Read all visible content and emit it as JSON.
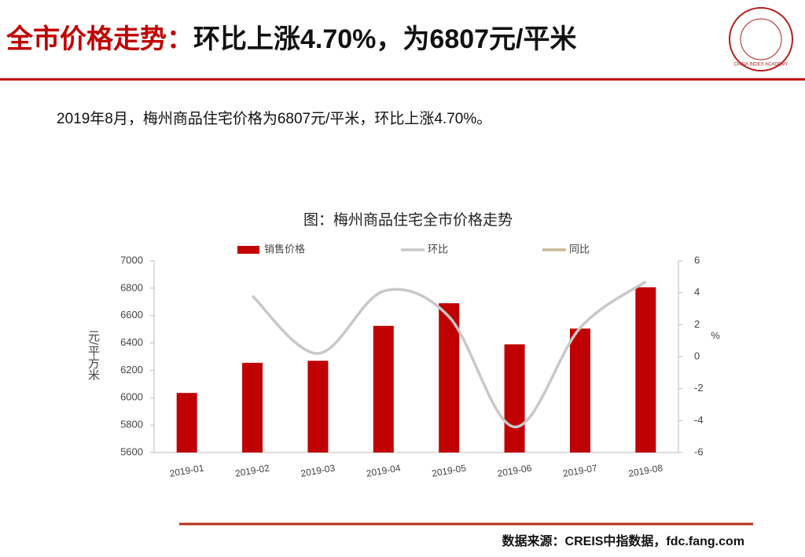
{
  "header": {
    "title_prefix": "全市价格走势：",
    "title_rest": "环比上涨4.70%，为6807元/平米",
    "logo_text": "CHINA INDEX ACADEMY",
    "summary": "2019年8月，梅州商品住宅价格为6807元/平米，环比上涨4.70%。"
  },
  "chart_data": {
    "type": "bar",
    "title": "图：梅州商品住宅全市价格走势",
    "categories": [
      "2019-01",
      "2019-02",
      "2019-03",
      "2019-04",
      "2019-05",
      "2019-06",
      "2019-07",
      "2019-08"
    ],
    "series": [
      {
        "name": "销售价格",
        "type": "bar",
        "color": "#c00000",
        "values": [
          6035,
          6255,
          6270,
          6525,
          6690,
          6390,
          6505,
          6807
        ]
      },
      {
        "name": "环比",
        "type": "line",
        "axis": "y2",
        "color": "#c8c8c8",
        "values": [
          null,
          3.8,
          0.2,
          4.1,
          2.5,
          -4.4,
          1.8,
          4.7
        ]
      },
      {
        "name": "同比",
        "type": "line",
        "axis": "y2",
        "color": "#c4bc96",
        "values": [
          null,
          null,
          null,
          null,
          null,
          null,
          null,
          null
        ]
      }
    ],
    "ylabel": "元/平方米",
    "y2label": "%",
    "ylim": [
      5600,
      7000
    ],
    "yticks": [
      5600,
      5800,
      6000,
      6200,
      6400,
      6600,
      6800,
      7000
    ],
    "y2lim": [
      -6,
      6
    ],
    "y2ticks": [
      -6,
      -4,
      -2,
      0,
      2,
      4,
      6
    ],
    "grid": false,
    "legend": "top"
  },
  "footer": {
    "source": "数据来源：CREIS中指数据，fdc.fang.com"
  }
}
